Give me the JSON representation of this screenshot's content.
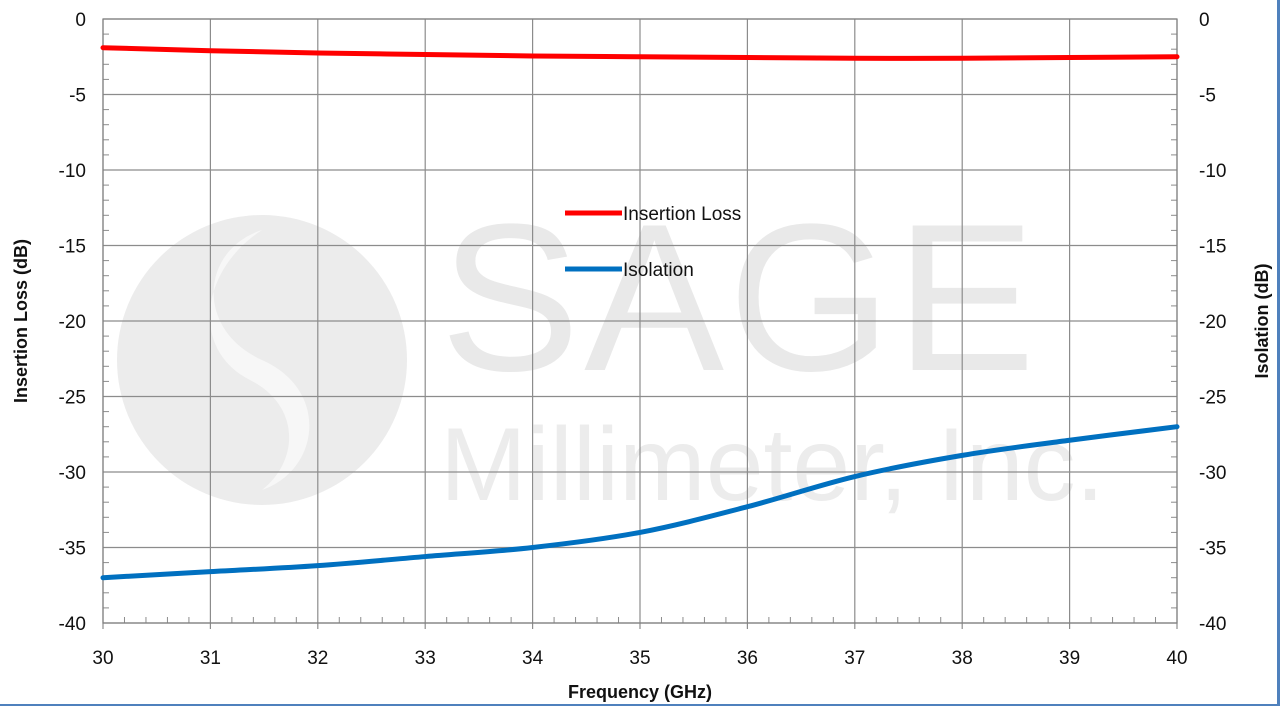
{
  "chart_data": {
    "type": "line",
    "xlabel": "Frequency (GHz)",
    "ylabel_left": "Insertion Loss (dB)",
    "ylabel_right": "Isolation (dB)",
    "xlim": [
      30,
      40
    ],
    "ylim": [
      -40,
      0
    ],
    "ylim_right": [
      -40,
      0
    ],
    "x_ticks": [
      "30",
      "31",
      "32",
      "33",
      "34",
      "35",
      "36",
      "37",
      "38",
      "39",
      "40"
    ],
    "y_ticks": [
      "0",
      "-5",
      "-10",
      "-15",
      "-20",
      "-25",
      "-30",
      "-35",
      "-40"
    ],
    "grid": true,
    "legend_position": "center",
    "series": [
      {
        "name": "Insertion Loss",
        "color": "#ff0000",
        "axis": "left",
        "x": [
          30,
          31,
          32,
          33,
          34,
          35,
          36,
          37,
          38,
          39,
          40
        ],
        "y": [
          -1.9,
          -2.1,
          -2.25,
          -2.35,
          -2.45,
          -2.5,
          -2.55,
          -2.6,
          -2.6,
          -2.55,
          -2.5
        ]
      },
      {
        "name": "Isolation",
        "color": "#0070c0",
        "axis": "right",
        "x": [
          30,
          31,
          32,
          33,
          34,
          35,
          36,
          37,
          38,
          39,
          40
        ],
        "y": [
          -37.0,
          -36.6,
          -36.2,
          -35.6,
          -35.0,
          -34.0,
          -32.3,
          -30.3,
          -28.9,
          -27.9,
          -27.0
        ]
      }
    ]
  },
  "watermark": {
    "line1": "SAGE",
    "line2": "Millimeter, Inc."
  }
}
